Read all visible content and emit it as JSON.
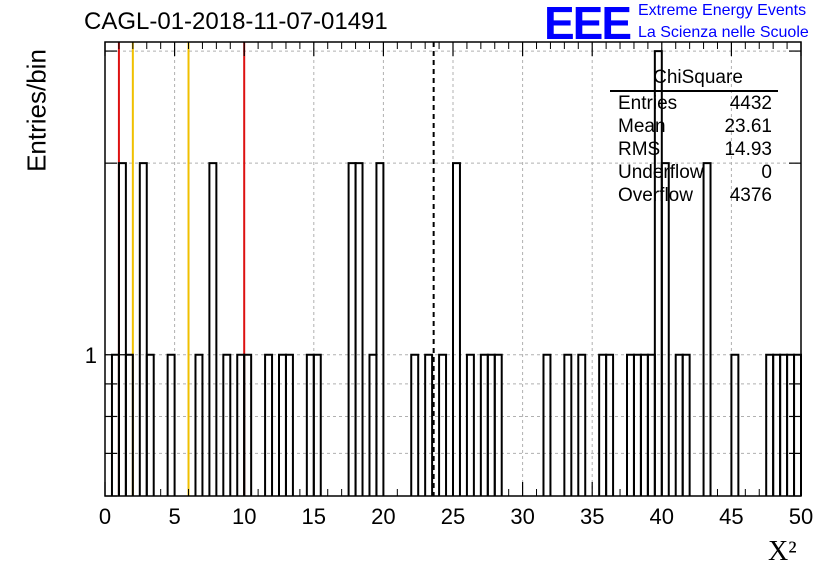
{
  "chart_data": {
    "type": "bar",
    "title": "CAGL-01-2018-11-07-01491",
    "xlabel": "X²",
    "ylabel": "Entries/bin",
    "xlim": [
      0,
      50
    ],
    "ylim": [
      0.6,
      3.1
    ],
    "y_log": true,
    "grid": true,
    "x_ticks": [
      "0",
      "5",
      "10",
      "15",
      "20",
      "25",
      "30",
      "35",
      "40",
      "45",
      "50"
    ],
    "y_ticks": [
      "1"
    ],
    "bin_width": 0.5,
    "bins": [
      {
        "x": 0.5,
        "y": 1
      },
      {
        "x": 1.0,
        "y": 2
      },
      {
        "x": 1.5,
        "y": 1
      },
      {
        "x": 2.5,
        "y": 2
      },
      {
        "x": 3.0,
        "y": 1
      },
      {
        "x": 4.5,
        "y": 1
      },
      {
        "x": 6.5,
        "y": 1
      },
      {
        "x": 7.5,
        "y": 2
      },
      {
        "x": 8.5,
        "y": 1
      },
      {
        "x": 9.5,
        "y": 1
      },
      {
        "x": 10.0,
        "y": 1
      },
      {
        "x": 11.5,
        "y": 1
      },
      {
        "x": 12.5,
        "y": 1
      },
      {
        "x": 13.0,
        "y": 1
      },
      {
        "x": 14.5,
        "y": 1
      },
      {
        "x": 15.0,
        "y": 1
      },
      {
        "x": 17.5,
        "y": 2
      },
      {
        "x": 18.0,
        "y": 2
      },
      {
        "x": 19.0,
        "y": 1
      },
      {
        "x": 19.5,
        "y": 2
      },
      {
        "x": 22.0,
        "y": 1
      },
      {
        "x": 23.0,
        "y": 1
      },
      {
        "x": 24.0,
        "y": 1
      },
      {
        "x": 25.0,
        "y": 2
      },
      {
        "x": 26.0,
        "y": 1
      },
      {
        "x": 27.0,
        "y": 1
      },
      {
        "x": 27.5,
        "y": 1
      },
      {
        "x": 28.0,
        "y": 1
      },
      {
        "x": 31.5,
        "y": 1
      },
      {
        "x": 33.0,
        "y": 1
      },
      {
        "x": 34.0,
        "y": 1
      },
      {
        "x": 35.5,
        "y": 1
      },
      {
        "x": 36.0,
        "y": 1
      },
      {
        "x": 37.5,
        "y": 1
      },
      {
        "x": 38.0,
        "y": 1
      },
      {
        "x": 38.5,
        "y": 1
      },
      {
        "x": 39.0,
        "y": 1
      },
      {
        "x": 39.5,
        "y": 3
      },
      {
        "x": 40.0,
        "y": 2
      },
      {
        "x": 41.0,
        "y": 1
      },
      {
        "x": 41.5,
        "y": 1
      },
      {
        "x": 43.0,
        "y": 2
      },
      {
        "x": 45.0,
        "y": 1
      },
      {
        "x": 47.5,
        "y": 1
      },
      {
        "x": 48.0,
        "y": 1
      },
      {
        "x": 48.5,
        "y": 1
      },
      {
        "x": 49.0,
        "y": 1
      },
      {
        "x": 49.5,
        "y": 1
      }
    ],
    "vertical_lines": [
      {
        "x": 1,
        "color": "#dd1111",
        "style": "solid"
      },
      {
        "x": 2,
        "color": "#f0c000",
        "style": "solid"
      },
      {
        "x": 6,
        "color": "#f0c000",
        "style": "solid"
      },
      {
        "x": 10,
        "color": "#dd1111",
        "style": "solid"
      },
      {
        "x": 23.61,
        "color": "#000000",
        "style": "dashed"
      }
    ],
    "stats_box": {
      "title": "ChiSquare",
      "rows": [
        {
          "label": "Entries",
          "value": "4432"
        },
        {
          "label": "Mean",
          "value": "23.61"
        },
        {
          "label": "RMS",
          "value": "14.93"
        },
        {
          "label": "Underflow",
          "value": "0"
        },
        {
          "label": "Overflow",
          "value": "4376"
        }
      ]
    }
  },
  "logo": {
    "mark": "EEE",
    "line1": "Extreme Energy Events",
    "line2": "La Scienza nelle Scuole",
    "color": "#0000ff"
  }
}
